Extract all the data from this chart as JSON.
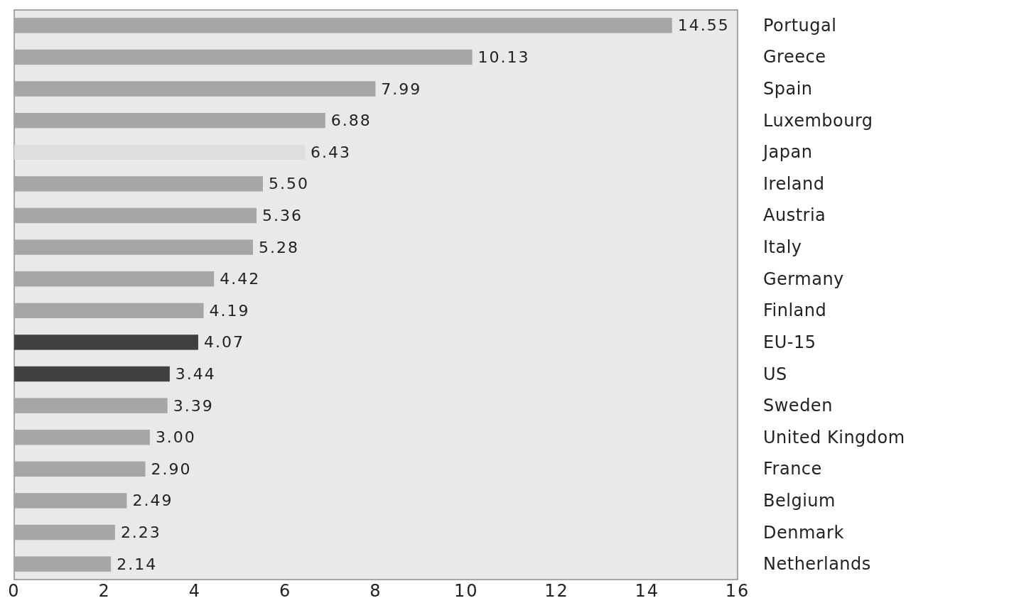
{
  "chart_data": {
    "type": "bar",
    "orientation": "horizontal",
    "categories": [
      "Portugal",
      "Greece",
      "Spain",
      "Luxembourg",
      "Japan",
      "Ireland",
      "Austria",
      "Italy",
      "Germany",
      "Finland",
      "EU-15",
      "US",
      "Sweden",
      "United Kingdom",
      "France",
      "Belgium",
      "Denmark",
      "Netherlands"
    ],
    "values": [
      14.55,
      10.13,
      7.99,
      6.88,
      6.43,
      5.5,
      5.36,
      5.28,
      4.42,
      4.19,
      4.07,
      3.44,
      3.39,
      3.0,
      2.9,
      2.49,
      2.23,
      2.14
    ],
    "colors": [
      "#a6a6a6",
      "#a6a6a6",
      "#a6a6a6",
      "#a6a6a6",
      "#dedede",
      "#a6a6a6",
      "#a6a6a6",
      "#a6a6a6",
      "#a6a6a6",
      "#a6a6a6",
      "#404040",
      "#404040",
      "#a6a6a6",
      "#a6a6a6",
      "#a6a6a6",
      "#a6a6a6",
      "#a6a6a6",
      "#a6a6a6"
    ],
    "value_labels": [
      "14.55",
      "10.13",
      "7.99",
      "6.88",
      "6.43",
      "5.50",
      "5.36",
      "5.28",
      "4.42",
      "4.19",
      "4.07",
      "3.44",
      "3.39",
      "3.00",
      "2.90",
      "2.49",
      "2.23",
      "2.14"
    ],
    "xlim": [
      0,
      16
    ],
    "xticks": [
      0,
      2,
      4,
      6,
      8,
      10,
      12,
      14,
      16
    ]
  }
}
